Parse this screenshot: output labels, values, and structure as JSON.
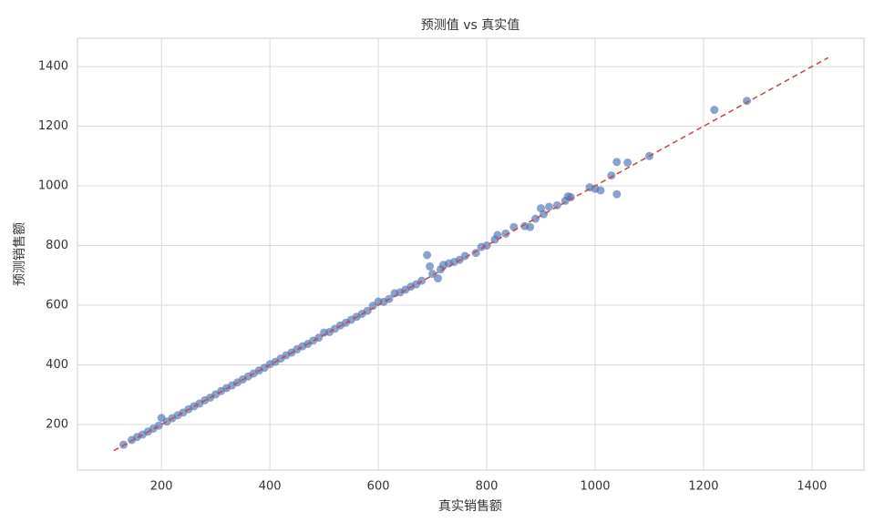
{
  "chart_data": {
    "type": "scatter",
    "title": "预测值 vs 真实值",
    "x_label": "真实销售额",
    "y_label": "预测销售额",
    "color": "#4c72b0",
    "grid": true,
    "xlim": [
      45,
      1496
    ],
    "ylim": [
      47,
      1495
    ],
    "xticks": [
      200,
      400,
      600,
      800,
      1000,
      1200,
      1400
    ],
    "yticks": [
      200,
      400,
      600,
      800,
      1000,
      1200,
      1400
    ],
    "x": [
      130,
      145,
      155,
      165,
      175,
      185,
      195,
      200,
      210,
      220,
      230,
      240,
      250,
      260,
      270,
      280,
      290,
      300,
      310,
      320,
      330,
      340,
      350,
      360,
      370,
      380,
      390,
      400,
      410,
      420,
      430,
      440,
      450,
      460,
      470,
      480,
      490,
      500,
      510,
      520,
      530,
      540,
      550,
      560,
      570,
      580,
      590,
      600,
      610,
      620,
      630,
      640,
      650,
      660,
      670,
      680,
      690,
      695,
      700,
      710,
      715,
      720,
      730,
      740,
      750,
      760,
      780,
      790,
      800,
      815,
      820,
      835,
      850,
      870,
      880,
      890,
      900,
      905,
      915,
      930,
      945,
      950,
      955,
      990,
      1000,
      1010,
      1030,
      1040,
      1040,
      1060,
      1100,
      1220,
      1280
    ],
    "values": [
      132,
      148,
      158,
      166,
      176,
      186,
      196,
      222,
      210,
      221,
      231,
      240,
      251,
      261,
      270,
      281,
      290,
      301,
      312,
      322,
      331,
      341,
      351,
      361,
      371,
      381,
      390,
      402,
      410,
      421,
      432,
      441,
      452,
      462,
      470,
      481,
      491,
      508,
      510,
      521,
      532,
      541,
      551,
      561,
      571,
      581,
      598,
      612,
      611,
      621,
      640,
      643,
      652,
      662,
      670,
      682,
      768,
      730,
      705,
      690,
      720,
      735,
      740,
      745,
      752,
      765,
      775,
      795,
      800,
      820,
      835,
      840,
      862,
      865,
      862,
      890,
      925,
      905,
      930,
      935,
      950,
      965,
      962,
      995,
      990,
      985,
      1035,
      1080,
      972,
      1078,
      1100,
      1255,
      1285
    ],
    "reference_line": {
      "x": [
        112,
        1430
      ],
      "y": [
        112,
        1430
      ],
      "color": "#c44e52"
    }
  }
}
